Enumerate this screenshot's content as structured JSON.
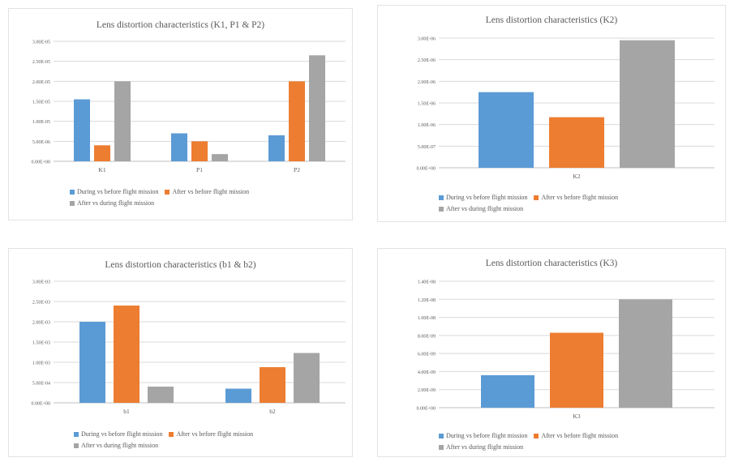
{
  "colors": {
    "series1": "#5b9bd5",
    "series2": "#ed7d31",
    "series3": "#a5a5a5",
    "grid": "#d9d9d9",
    "axis": "#bfbfbf"
  },
  "legend_labels": [
    "During vs before flight mission",
    "After vs before flight mission",
    "After vs during flight mission"
  ],
  "chart_data": [
    {
      "type": "bar",
      "title": "Lens distortion characteristics (K1, P1 & P2)",
      "categories": [
        "K1",
        "P1",
        "P2"
      ],
      "yticks": [
        "0.00E+00",
        "5.00E-06",
        "1.00E-05",
        "1.50E-05",
        "2.00E-05",
        "2.50E-05",
        "3.00E-05"
      ],
      "ylim": [
        0,
        3e-05
      ],
      "series": [
        {
          "name": "During vs before flight mission",
          "values": [
            1.55e-05,
            7e-06,
            6.5e-06
          ]
        },
        {
          "name": "After vs before flight mission",
          "values": [
            4e-06,
            5e-06,
            2e-05
          ]
        },
        {
          "name": "After vs during flight mission",
          "values": [
            2e-05,
            1.8e-06,
            2.65e-05
          ]
        }
      ]
    },
    {
      "type": "bar",
      "title": "Lens distortion characteristics (K2)",
      "categories": [
        "K2"
      ],
      "yticks": [
        "0.00E+00",
        "5.00E-07",
        "1.00E-06",
        "1.50E-06",
        "2.00E-06",
        "2.50E-06",
        "3.00E-06"
      ],
      "ylim": [
        0,
        3e-06
      ],
      "series": [
        {
          "name": "During vs before flight mission",
          "values": [
            1.75e-06
          ]
        },
        {
          "name": "After vs before flight mission",
          "values": [
            1.17e-06
          ]
        },
        {
          "name": "After vs during flight mission",
          "values": [
            2.95e-06
          ]
        }
      ]
    },
    {
      "type": "bar",
      "title": "Lens distortion characteristics (b1 & b2)",
      "categories": [
        "b1",
        "b2"
      ],
      "yticks": [
        "0.00E+00",
        "5.00E-04",
        "1.00E-03",
        "1.50E-03",
        "2.00E-03",
        "2.50E-03",
        "3.00E-03"
      ],
      "ylim": [
        0,
        0.003
      ],
      "series": [
        {
          "name": "During vs before flight mission",
          "values": [
            0.002,
            0.00035
          ]
        },
        {
          "name": "After vs before flight mission",
          "values": [
            0.0024,
            0.00088
          ]
        },
        {
          "name": "After vs during flight mission",
          "values": [
            0.0004,
            0.00123
          ]
        }
      ]
    },
    {
      "type": "bar",
      "title": "Lens distortion characteristics (K3)",
      "categories": [
        "K3"
      ],
      "yticks": [
        "0.00E+00",
        "2.00E-09",
        "4.00E-09",
        "6.00E-09",
        "8.00E-09",
        "1.00E-08",
        "1.20E-08",
        "1.40E-08"
      ],
      "ylim": [
        0,
        1.4e-08
      ],
      "series": [
        {
          "name": "During vs before flight mission",
          "values": [
            3.6e-09
          ]
        },
        {
          "name": "After vs before flight mission",
          "values": [
            8.3e-09
          ]
        },
        {
          "name": "After vs during flight mission",
          "values": [
            1.2e-08
          ]
        }
      ]
    }
  ]
}
